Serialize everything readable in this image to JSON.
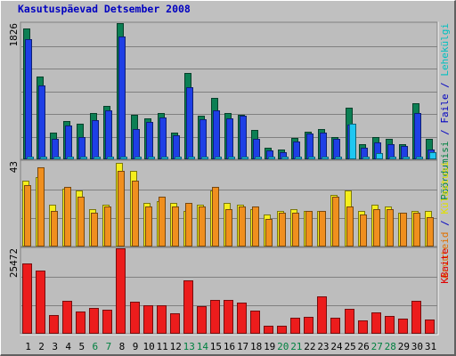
{
  "chart_data": {
    "type": "bar",
    "title": "Kasutuspäevad Detsember 2008",
    "categories": [
      "1",
      "2",
      "3",
      "4",
      "5",
      "6",
      "7",
      "8",
      "9",
      "10",
      "11",
      "12",
      "13",
      "14",
      "15",
      "16",
      "17",
      "18",
      "19",
      "20",
      "21",
      "22",
      "23",
      "24",
      "25",
      "26",
      "27",
      "28",
      "29",
      "30",
      "31"
    ],
    "weekend_days": [
      "6",
      "7",
      "13",
      "14",
      "20",
      "21",
      "27",
      "28"
    ],
    "panels": [
      {
        "id": "top",
        "ymax_label": "1826",
        "ymax": 1826,
        "legend": [
          {
            "text": "Pöördumisi",
            "color": "#008040"
          },
          {
            "text": " / ",
            "color": "#0000c0"
          },
          {
            "text": "Faile",
            "color": "#0000c0"
          },
          {
            "text": " / ",
            "color": "#0000c0"
          },
          {
            "text": "Lehekülgi",
            "color": "#00c0c0"
          }
        ],
        "series": [
          {
            "name": "Pöördumisi",
            "color": "#0c7f54",
            "values": [
              1755,
              1107,
              360,
              519,
              479,
              620,
              715,
              1826,
              598,
              554,
              621,
              364,
              1159,
              586,
              825,
              621,
              598,
              389,
              157,
              135,
              285,
              374,
              400,
              300,
              693,
              200,
              300,
              280,
              200,
              747,
              280
            ]
          },
          {
            "name": "Faile",
            "color": "#1e3fe6",
            "values": [
              1610,
              990,
              280,
              450,
              300,
              531,
              660,
              1650,
              410,
              500,
              562,
              320,
              968,
              535,
              660,
              552,
              581,
              270,
              120,
              95,
              240,
              345,
              355,
              280,
              470,
              160,
              230,
              200,
              175,
              620,
              130
            ]
          },
          {
            "name": "Lehekülgi",
            "color": "#1ec7f2",
            "values": [
              40,
              40,
              40,
              40,
              40,
              40,
              40,
              40,
              40,
              40,
              40,
              40,
              40,
              40,
              40,
              40,
              40,
              40,
              40,
              40,
              40,
              40,
              40,
              40,
              480,
              40,
              80,
              40,
              40,
              40,
              100
            ]
          }
        ]
      },
      {
        "id": "mid",
        "ymax_label": "43",
        "ymax": 43,
        "legend": [
          {
            "text": "Arvuteid",
            "color": "#e07000"
          },
          {
            "text": " / ",
            "color": "#0000c0"
          },
          {
            "text": "Külastusi",
            "color": "#e0e000"
          }
        ],
        "series": [
          {
            "name": "Külastusi",
            "color": "#f5ee1c",
            "values": [
              33,
              35,
              21,
              29,
              28,
              19,
              21,
              42,
              38,
              22,
              23,
              22,
              18,
              21,
              28,
              22,
              21,
              19,
              16,
              18,
              19,
              18,
              18,
              26,
              28,
              18,
              21,
              20,
              17,
              18,
              18
            ]
          },
          {
            "name": "Arvuteid",
            "color": "#f08f1e",
            "values": [
              31,
              40,
              18,
              30,
              25,
              17,
              20,
              38,
              33,
              20,
              25,
              20,
              22,
              20,
              30,
              19,
              20,
              20,
              14,
              17,
              17,
              18,
              18,
              25,
              20,
              16,
              19,
              19,
              17,
              17,
              15
            ]
          }
        ]
      },
      {
        "id": "bottom",
        "ymax_label": "25472",
        "ymax": 25472,
        "legend": [
          {
            "text": "KBaite",
            "color": "#e00000"
          }
        ],
        "series": [
          {
            "name": "KBaite",
            "color": "#ec1c1c",
            "values": [
              21003,
              18929,
              5690,
              9764,
              6575,
              7614,
              7159,
              25472,
              9453,
              8399,
              8437,
              6096,
              16007,
              8155,
              10208,
              10029,
              9265,
              6780,
              2426,
              2415,
              4810,
              5170,
              11036,
              4779,
              7363,
              3873,
              6360,
              5209,
              4387,
              9860,
              4154
            ]
          }
        ]
      }
    ]
  }
}
